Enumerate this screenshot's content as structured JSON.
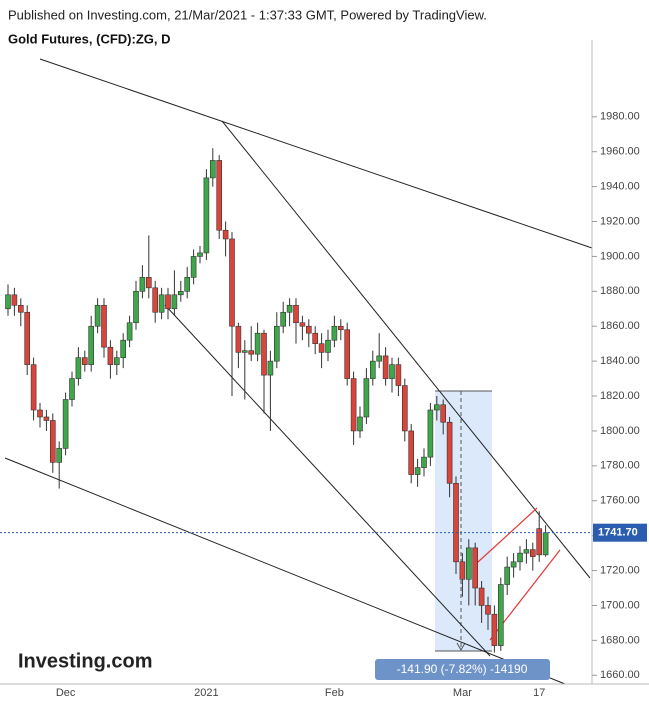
{
  "chart_data": {
    "type": "candlestick",
    "header": "Published on Investing.com, 21/Mar/2021 - 1:37:33 GMT, Powered by TradingView.",
    "title": "Gold Futures, (CFD):ZG, D",
    "watermark": "Investing.com",
    "measure_label": "-141.90 (-7.82%) -14190",
    "last_price": {
      "value": 1741.7,
      "label": "1741.70"
    },
    "up_color": "#3fa64a",
    "down_color": "#d9453b",
    "categories": [
      null,
      null,
      null,
      null,
      null,
      null,
      null,
      null,
      null,
      "Dec",
      null,
      null,
      null,
      null,
      null,
      null,
      null,
      null,
      null,
      null,
      null,
      null,
      null,
      null,
      null,
      null,
      null,
      null,
      null,
      null,
      null,
      "2021",
      null,
      null,
      null,
      null,
      null,
      null,
      null,
      null,
      null,
      null,
      null,
      null,
      null,
      null,
      null,
      null,
      null,
      null,
      null,
      "Feb",
      null,
      null,
      null,
      null,
      null,
      null,
      null,
      null,
      null,
      null,
      null,
      null,
      null,
      null,
      null,
      null,
      null,
      null,
      null,
      "Mar",
      null,
      null,
      null,
      null,
      null,
      null,
      null,
      null,
      null,
      null,
      null,
      "17",
      null
    ],
    "open": [
      1870,
      1878,
      1872,
      1868,
      1838,
      1812,
      1808,
      1806,
      1782,
      1790,
      1818,
      1830,
      1842,
      1838,
      1860,
      1872,
      1848,
      1838,
      1842,
      1852,
      1862,
      1880,
      1888,
      1882,
      1868,
      1878,
      1870,
      1878,
      1880,
      1888,
      1900,
      1902,
      1945,
      1955,
      1915,
      1910,
      1860,
      1845,
      1846,
      1844,
      1856,
      1832,
      1840,
      1860,
      1868,
      1872,
      1862,
      1860,
      1856,
      1850,
      1845,
      1852,
      1860,
      1858,
      1830,
      1800,
      1808,
      1830,
      1840,
      1843,
      1830,
      1838,
      1826,
      1800,
      1775,
      1779,
      1785,
      1812,
      1815,
      1805,
      1770,
      1725,
      1715,
      1733,
      1710,
      1700,
      1695,
      1677,
      1712,
      1722,
      1725,
      1730,
      1732,
      1744,
      1729
    ],
    "high": [
      1884,
      1882,
      1876,
      1872,
      1842,
      1816,
      1812,
      1810,
      1794,
      1822,
      1834,
      1848,
      1846,
      1866,
      1876,
      1876,
      1852,
      1846,
      1856,
      1866,
      1886,
      1895,
      1912,
      1886,
      1882,
      1882,
      1892,
      1886,
      1894,
      1904,
      1906,
      1950,
      1962,
      1958,
      1920,
      1914,
      1862,
      1852,
      1860,
      1862,
      1858,
      1846,
      1868,
      1874,
      1876,
      1876,
      1866,
      1864,
      1860,
      1856,
      1858,
      1866,
      1864,
      1862,
      1834,
      1814,
      1836,
      1846,
      1856,
      1848,
      1842,
      1842,
      1830,
      1804,
      1784,
      1790,
      1816,
      1820,
      1818,
      1808,
      1774,
      1730,
      1738,
      1736,
      1714,
      1705,
      1700,
      1716,
      1728,
      1730,
      1734,
      1738,
      1736,
      1754,
      1746
    ],
    "low": [
      1866,
      1866,
      1860,
      1832,
      1806,
      1802,
      1800,
      1776,
      1767,
      1786,
      1814,
      1826,
      1834,
      1834,
      1856,
      1842,
      1830,
      1832,
      1836,
      1848,
      1858,
      1876,
      1876,
      1862,
      1864,
      1864,
      1866,
      1874,
      1876,
      1884,
      1896,
      1898,
      1940,
      1910,
      1900,
      1820,
      1836,
      1818,
      1840,
      1840,
      1810,
      1800,
      1836,
      1856,
      1860,
      1850,
      1852,
      1848,
      1844,
      1836,
      1840,
      1848,
      1852,
      1826,
      1792,
      1796,
      1804,
      1826,
      1836,
      1826,
      1822,
      1820,
      1794,
      1770,
      1768,
      1774,
      1780,
      1806,
      1798,
      1762,
      1718,
      1705,
      1700,
      1700,
      1690,
      1686,
      1673,
      1674,
      1706,
      1716,
      1720,
      1724,
      1720,
      1725,
      1728
    ],
    "close": [
      1878,
      1872,
      1868,
      1838,
      1812,
      1808,
      1806,
      1782,
      1790,
      1818,
      1830,
      1842,
      1838,
      1860,
      1872,
      1848,
      1838,
      1842,
      1852,
      1862,
      1880,
      1888,
      1882,
      1868,
      1878,
      1870,
      1878,
      1880,
      1888,
      1900,
      1902,
      1945,
      1955,
      1915,
      1910,
      1860,
      1845,
      1846,
      1844,
      1856,
      1832,
      1840,
      1860,
      1868,
      1872,
      1862,
      1860,
      1856,
      1850,
      1845,
      1852,
      1860,
      1858,
      1830,
      1800,
      1808,
      1830,
      1840,
      1843,
      1830,
      1838,
      1826,
      1800,
      1775,
      1779,
      1785,
      1812,
      1815,
      1805,
      1770,
      1725,
      1715,
      1733,
      1710,
      1700,
      1695,
      1677,
      1712,
      1722,
      1725,
      1730,
      1732,
      1728,
      1729,
      1741.7
    ],
    "ylim": [
      1655,
      2024
    ],
    "yticks": [
      {
        "value": 1660,
        "label": "1660.00"
      },
      {
        "value": 1680,
        "label": "1680.00"
      },
      {
        "value": 1700,
        "label": "1700.00"
      },
      {
        "value": 1720,
        "label": "1720.00"
      },
      {
        "value": 1740,
        "label": "1740.00"
      },
      {
        "value": 1760,
        "label": "1760.00"
      },
      {
        "value": 1780,
        "label": "1780.00"
      },
      {
        "value": 1800,
        "label": "1800.00"
      },
      {
        "value": 1820,
        "label": "1820.00"
      },
      {
        "value": 1840,
        "label": "1840.00"
      },
      {
        "value": 1860,
        "label": "1860.00"
      },
      {
        "value": 1880,
        "label": "1880.00"
      },
      {
        "value": 1900,
        "label": "1900.00"
      },
      {
        "value": 1920,
        "label": "1920.00"
      },
      {
        "value": 1940,
        "label": "1940.00"
      },
      {
        "value": 1960,
        "label": "1960.00"
      },
      {
        "value": 1980,
        "label": "1980.00"
      }
    ]
  }
}
